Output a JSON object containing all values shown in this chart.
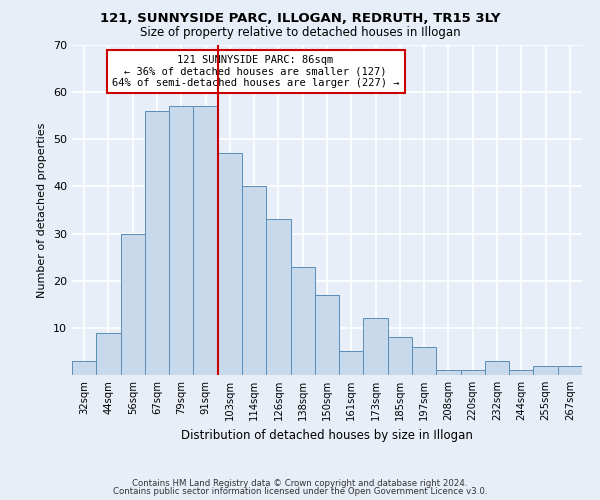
{
  "title1": "121, SUNNYSIDE PARC, ILLOGAN, REDRUTH, TR15 3LY",
  "title2": "Size of property relative to detached houses in Illogan",
  "xlabel": "Distribution of detached houses by size in Illogan",
  "ylabel": "Number of detached properties",
  "categories": [
    "32sqm",
    "44sqm",
    "56sqm",
    "67sqm",
    "79sqm",
    "91sqm",
    "103sqm",
    "114sqm",
    "126sqm",
    "138sqm",
    "150sqm",
    "161sqm",
    "173sqm",
    "185sqm",
    "197sqm",
    "208sqm",
    "220sqm",
    "232sqm",
    "244sqm",
    "255sqm",
    "267sqm"
  ],
  "values": [
    3,
    9,
    30,
    56,
    57,
    57,
    47,
    40,
    33,
    23,
    17,
    5,
    12,
    8,
    6,
    1,
    1,
    3,
    1,
    2,
    2
  ],
  "bar_color": "#c9d9ec",
  "bar_edge_color": "#5b8db8",
  "red_line_x": 5.5,
  "annotation_text": "121 SUNNYSIDE PARC: 86sqm\n← 36% of detached houses are smaller (127)\n64% of semi-detached houses are larger (227) →",
  "annotation_box_color": "#ffffff",
  "annotation_box_edge_color": "#cc0000",
  "footnote1": "Contains HM Land Registry data © Crown copyright and database right 2024.",
  "footnote2": "Contains public sector information licensed under the Open Government Licence v3.0.",
  "ylim": [
    0,
    70
  ],
  "yticks": [
    0,
    10,
    20,
    30,
    40,
    50,
    60,
    70
  ],
  "background_color": "#e8eef8",
  "grid_color": "#ffffff"
}
